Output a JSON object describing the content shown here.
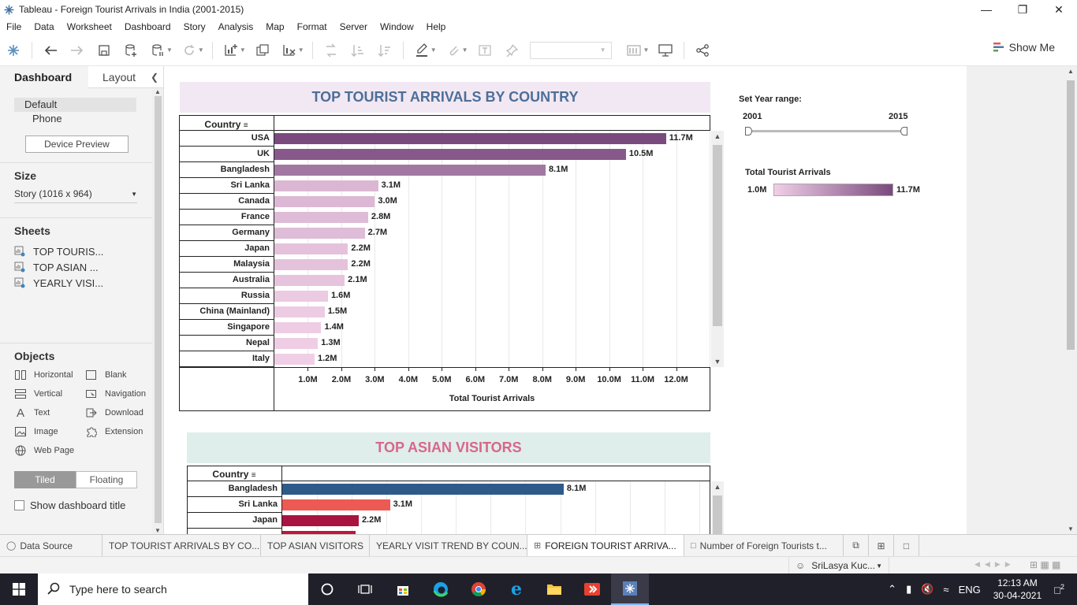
{
  "window": {
    "title": "Tableau - Foreign Tourist Arrivals in India (2001-2015)"
  },
  "menu": [
    "File",
    "Data",
    "Worksheet",
    "Dashboard",
    "Story",
    "Analysis",
    "Map",
    "Format",
    "Server",
    "Window",
    "Help"
  ],
  "toolbar": {
    "show_me": "Show Me",
    "icons": [
      "tableau-logo-icon",
      "undo-icon",
      "redo-icon",
      "save-icon",
      "new-datasource-icon",
      "pause-updates-icon",
      "refresh-icon",
      "new-worksheet-icon",
      "duplicate-sheet-icon",
      "clear-sheet-icon",
      "swap-icon",
      "sort-asc-icon",
      "sort-desc-icon",
      "highlight-icon",
      "group-icon",
      "labels-icon",
      "pin-icon",
      "view-cards-icon",
      "presentation-icon",
      "share-icon"
    ]
  },
  "left_panel": {
    "tabs": [
      "Dashboard",
      "Layout"
    ],
    "devices": [
      "Default",
      "Phone"
    ],
    "device_preview": "Device Preview",
    "size_title": "Size",
    "size_value": "Story (1016 x 964)",
    "sheets_title": "Sheets",
    "sheets": [
      "TOP TOURIS...",
      "TOP ASIAN ...",
      "YEARLY VISI..."
    ],
    "objects_title": "Objects",
    "objects": [
      {
        "label": "Horizontal",
        "icon": "horizontal-icon"
      },
      {
        "label": "Blank",
        "icon": "blank-icon"
      },
      {
        "label": "Vertical",
        "icon": "vertical-icon"
      },
      {
        "label": "Navigation",
        "icon": "navigation-icon"
      },
      {
        "label": "Text",
        "icon": "text-icon"
      },
      {
        "label": "Download",
        "icon": "download-icon"
      },
      {
        "label": "Image",
        "icon": "image-icon"
      },
      {
        "label": "Extension",
        "icon": "extension-icon"
      },
      {
        "label": "Web Page",
        "icon": "web-page-icon"
      }
    ],
    "tiled": "Tiled",
    "floating": "Floating",
    "show_title": "Show dashboard title"
  },
  "chart_data": [
    {
      "type": "bar",
      "orientation": "horizontal",
      "title": "TOP TOURIST ARRIVALS BY COUNTRY",
      "row_header": "Country",
      "xlabel": "Total Tourist Arrivals",
      "categories": [
        "USA",
        "UK",
        "Bangladesh",
        "Sri Lanka",
        "Canada",
        "France",
        "Germany",
        "Japan",
        "Malaysia",
        "Australia",
        "Russia",
        "China (Mainland)",
        "Singapore",
        "Nepal",
        "Italy"
      ],
      "values": [
        11.7,
        10.5,
        8.1,
        3.1,
        3.0,
        2.8,
        2.7,
        2.2,
        2.2,
        2.1,
        1.6,
        1.5,
        1.4,
        1.3,
        1.2
      ],
      "value_labels": [
        "11.7M",
        "10.5M",
        "8.1M",
        "3.1M",
        "3.0M",
        "2.8M",
        "2.7M",
        "2.2M",
        "2.2M",
        "2.1M",
        "1.6M",
        "1.5M",
        "1.4M",
        "1.3M",
        "1.2M"
      ],
      "ticks": [
        "1.0M",
        "2.0M",
        "3.0M",
        "4.0M",
        "5.0M",
        "6.0M",
        "7.0M",
        "8.0M",
        "9.0M",
        "10.0M",
        "11.0M",
        "12.0M"
      ],
      "xlim": [
        0,
        13
      ],
      "color_range": [
        "#f0cfe6",
        "#7a4a7e"
      ],
      "title_color": "#4d6f99",
      "title_bg": "#f2e8f3"
    },
    {
      "type": "bar",
      "orientation": "horizontal",
      "title": "TOP ASIAN VISITORS",
      "row_header": "Country",
      "categories": [
        "Bangladesh",
        "Sri Lanka",
        "Japan"
      ],
      "values": [
        8.1,
        3.1,
        2.2
      ],
      "value_labels": [
        "8.1M",
        "3.1M",
        "2.2M"
      ],
      "colors": [
        "#2e5a8a",
        "#ec5a53",
        "#a8143f"
      ],
      "xlim": [
        0,
        12.3
      ],
      "title_color": "#d8668a",
      "title_bg": "#dfeeea"
    }
  ],
  "filters": {
    "year_range_title": "Set Year range:",
    "year_from": "2001",
    "year_to": "2015",
    "legend_title": "Total Tourist Arrivals",
    "legend_min": "1.0M",
    "legend_max": "11.7M"
  },
  "sheet_tabs": [
    {
      "label": "Data Source",
      "icon": "database-icon"
    },
    {
      "label": "TOP TOURIST ARRIVALS BY CO..."
    },
    {
      "label": "TOP ASIAN VISITORS"
    },
    {
      "label": "YEARLY VISIT TREND BY COUN..."
    },
    {
      "label": "FOREIGN TOURIST ARRIVA...",
      "icon": "dashboard-icon",
      "active": true
    },
    {
      "label": "Number of Foreign Tourists t...",
      "icon": "story-icon"
    }
  ],
  "status": {
    "user": "SriLasya Kuc..."
  },
  "taskbar": {
    "search_placeholder": "Type here to search",
    "lang": "ENG",
    "time": "12:13 AM",
    "date": "30-04-2021",
    "notifications": "2"
  }
}
